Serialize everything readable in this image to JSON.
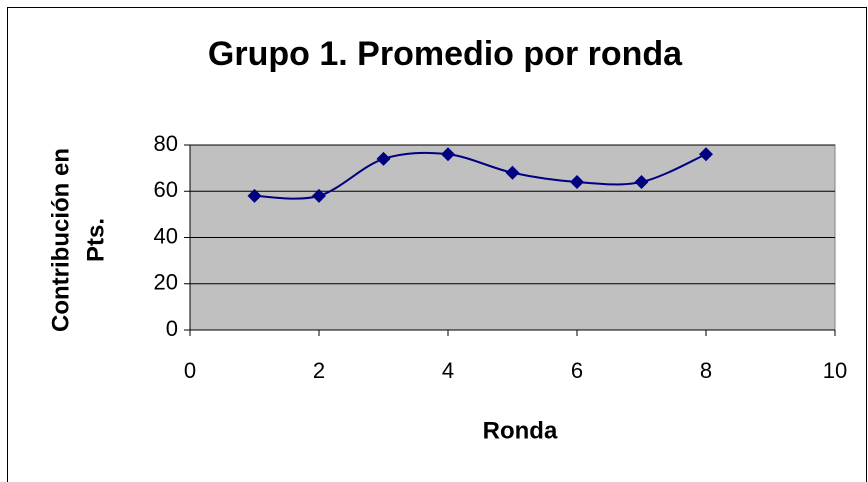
{
  "chart_data": {
    "type": "line",
    "title": "Grupo 1. Promedio por ronda",
    "xlabel": "Ronda",
    "ylabel": [
      "Contribución en",
      "Pts."
    ],
    "x": [
      1,
      2,
      3,
      4,
      5,
      6,
      7,
      8
    ],
    "series": [
      {
        "name": "Grupo 1",
        "color": "#000080",
        "values": [
          58,
          58,
          74,
          76,
          68,
          64,
          64,
          76
        ]
      }
    ],
    "xlim": [
      0,
      10
    ],
    "xticks": [
      0,
      2,
      4,
      6,
      8,
      10
    ],
    "ylim": [
      0,
      80
    ],
    "yticks": [
      0,
      20,
      40,
      60,
      80
    ],
    "grid": true,
    "smooth": true,
    "plot_background": "#c0c0c0"
  }
}
